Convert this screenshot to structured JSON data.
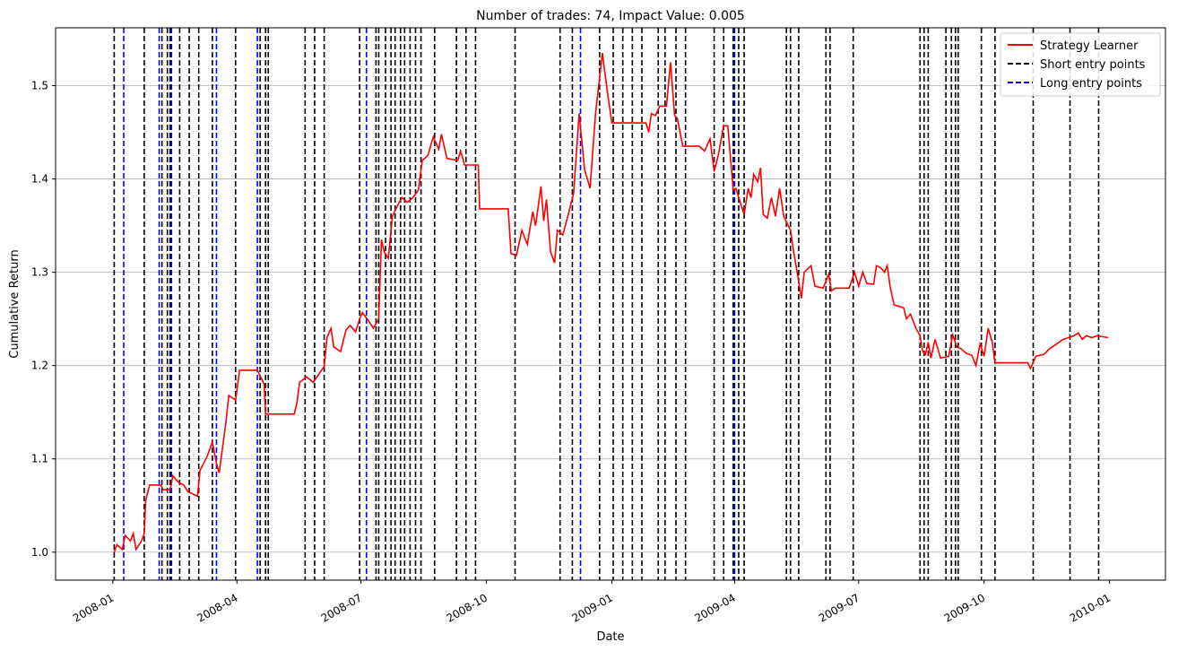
{
  "chart_data": {
    "type": "line",
    "title": "Number of trades: 74, Impact Value: 0.005",
    "xlabel": "Date",
    "ylabel": "Cumulative Return",
    "xlim": [
      "2007-11-20",
      "2010-02-11"
    ],
    "ylim": [
      0.97,
      1.562
    ],
    "x_ticks": [
      "2008-01",
      "2008-04",
      "2008-07",
      "2008-10",
      "2009-01",
      "2009-04",
      "2009-07",
      "2009-10",
      "2010-01"
    ],
    "x_tick_dates": [
      "2008-01-01",
      "2008-04-01",
      "2008-07-01",
      "2008-10-01",
      "2009-01-01",
      "2009-04-01",
      "2009-07-01",
      "2009-10-01",
      "2010-01-01"
    ],
    "y_ticks": [
      1.0,
      1.1,
      1.2,
      1.3,
      1.4,
      1.5
    ],
    "y_tick_labels": [
      "1.0",
      "1.1",
      "1.2",
      "1.3",
      "1.4",
      "1.5"
    ],
    "grid": "y-major",
    "legend_position": "top-right",
    "legend": [
      "Strategy Learner",
      "Short entry points",
      "Long entry points"
    ],
    "colors": {
      "strategy": "#ff0000",
      "short": "#000000",
      "long": "#0000ff",
      "grid": "#b0b0b0"
    },
    "series": [
      {
        "name": "Strategy Learner",
        "points": [
          [
            "2008-01-02",
            1.0
          ],
          [
            "2008-01-04",
            1.008
          ],
          [
            "2008-01-08",
            1.003
          ],
          [
            "2008-01-10",
            1.018
          ],
          [
            "2008-01-14",
            1.012
          ],
          [
            "2008-01-16",
            1.02
          ],
          [
            "2008-01-18",
            1.003
          ],
          [
            "2008-01-22",
            1.012
          ],
          [
            "2008-01-24",
            1.02
          ],
          [
            "2008-01-25",
            1.055
          ],
          [
            "2008-01-28",
            1.072
          ],
          [
            "2008-02-05",
            1.072
          ],
          [
            "2008-02-07",
            1.067
          ],
          [
            "2008-02-12",
            1.067
          ],
          [
            "2008-02-14",
            1.082
          ],
          [
            "2008-02-18",
            1.075
          ],
          [
            "2008-02-22",
            1.072
          ],
          [
            "2008-02-25",
            1.065
          ],
          [
            "2008-03-03",
            1.06
          ],
          [
            "2008-03-05",
            1.088
          ],
          [
            "2008-03-10",
            1.102
          ],
          [
            "2008-03-14",
            1.118
          ],
          [
            "2008-03-17",
            1.095
          ],
          [
            "2008-03-19",
            1.085
          ],
          [
            "2008-03-24",
            1.14
          ],
          [
            "2008-03-26",
            1.168
          ],
          [
            "2008-03-31",
            1.163
          ],
          [
            "2008-04-03",
            1.195
          ],
          [
            "2008-04-16",
            1.195
          ],
          [
            "2008-04-21",
            1.18
          ],
          [
            "2008-04-22",
            1.148
          ],
          [
            "2008-05-13",
            1.148
          ],
          [
            "2008-05-15",
            1.16
          ],
          [
            "2008-05-17",
            1.182
          ],
          [
            "2008-05-22",
            1.188
          ],
          [
            "2008-05-27",
            1.182
          ],
          [
            "2008-06-02",
            1.195
          ],
          [
            "2008-06-04",
            1.199
          ],
          [
            "2008-06-06",
            1.23
          ],
          [
            "2008-06-09",
            1.24
          ],
          [
            "2008-06-11",
            1.22
          ],
          [
            "2008-06-16",
            1.215
          ],
          [
            "2008-06-20",
            1.238
          ],
          [
            "2008-06-23",
            1.243
          ],
          [
            "2008-06-27",
            1.236
          ],
          [
            "2008-06-30",
            1.25
          ],
          [
            "2008-07-02",
            1.257
          ],
          [
            "2008-07-07",
            1.247
          ],
          [
            "2008-07-10",
            1.24
          ],
          [
            "2008-07-14",
            1.25
          ],
          [
            "2008-07-16",
            1.335
          ],
          [
            "2008-07-18",
            1.322
          ],
          [
            "2008-07-21",
            1.315
          ],
          [
            "2008-07-24",
            1.36
          ],
          [
            "2008-07-28",
            1.372
          ],
          [
            "2008-07-31",
            1.38
          ],
          [
            "2008-08-04",
            1.375
          ],
          [
            "2008-08-08",
            1.38
          ],
          [
            "2008-08-12",
            1.388
          ],
          [
            "2008-08-15",
            1.42
          ],
          [
            "2008-08-19",
            1.425
          ],
          [
            "2008-08-23",
            1.445
          ],
          [
            "2008-08-27",
            1.432
          ],
          [
            "2008-08-29",
            1.448
          ],
          [
            "2008-09-02",
            1.422
          ],
          [
            "2008-09-10",
            1.42
          ],
          [
            "2008-09-12",
            1.43
          ],
          [
            "2008-09-15",
            1.415
          ],
          [
            "2008-09-25",
            1.415
          ],
          [
            "2008-09-26",
            1.368
          ],
          [
            "2008-10-17",
            1.368
          ],
          [
            "2008-10-19",
            1.32
          ],
          [
            "2008-10-23",
            1.318
          ],
          [
            "2008-10-27",
            1.345
          ],
          [
            "2008-10-31",
            1.33
          ],
          [
            "2008-11-04",
            1.365
          ],
          [
            "2008-11-06",
            1.35
          ],
          [
            "2008-11-10",
            1.392
          ],
          [
            "2008-11-12",
            1.355
          ],
          [
            "2008-11-14",
            1.378
          ],
          [
            "2008-11-17",
            1.322
          ],
          [
            "2008-11-20",
            1.31
          ],
          [
            "2008-11-22",
            1.345
          ],
          [
            "2008-11-26",
            1.34
          ],
          [
            "2008-11-30",
            1.362
          ],
          [
            "2008-12-04",
            1.385
          ],
          [
            "2008-12-08",
            1.47
          ],
          [
            "2008-12-12",
            1.41
          ],
          [
            "2008-12-16",
            1.39
          ],
          [
            "2008-12-20",
            1.47
          ],
          [
            "2008-12-25",
            1.535
          ],
          [
            "2008-12-29",
            1.49
          ],
          [
            "2009-01-01",
            1.46
          ],
          [
            "2009-01-26",
            1.46
          ],
          [
            "2009-01-28",
            1.45
          ],
          [
            "2009-01-30",
            1.47
          ],
          [
            "2009-02-02",
            1.468
          ],
          [
            "2009-02-05",
            1.478
          ],
          [
            "2009-02-10",
            1.478
          ],
          [
            "2009-02-13",
            1.525
          ],
          [
            "2009-02-16",
            1.468
          ],
          [
            "2009-02-18",
            1.465
          ],
          [
            "2009-02-22",
            1.435
          ],
          [
            "2009-03-06",
            1.435
          ],
          [
            "2009-03-10",
            1.43
          ],
          [
            "2009-03-14",
            1.443
          ],
          [
            "2009-03-17",
            1.408
          ],
          [
            "2009-03-20",
            1.425
          ],
          [
            "2009-03-24",
            1.457
          ],
          [
            "2009-03-27",
            1.457
          ],
          [
            "2009-03-31",
            1.388
          ],
          [
            "2009-04-02",
            1.39
          ],
          [
            "2009-04-04",
            1.38
          ],
          [
            "2009-04-08",
            1.362
          ],
          [
            "2009-04-11",
            1.39
          ],
          [
            "2009-04-13",
            1.38
          ],
          [
            "2009-04-15",
            1.405
          ],
          [
            "2009-04-18",
            1.397
          ],
          [
            "2009-04-20",
            1.412
          ],
          [
            "2009-04-22",
            1.362
          ],
          [
            "2009-04-25",
            1.358
          ],
          [
            "2009-04-28",
            1.38
          ],
          [
            "2009-05-01",
            1.36
          ],
          [
            "2009-05-04",
            1.39
          ],
          [
            "2009-05-07",
            1.36
          ],
          [
            "2009-05-12",
            1.345
          ],
          [
            "2009-05-14",
            1.325
          ],
          [
            "2009-05-18",
            1.29
          ],
          [
            "2009-05-20",
            1.272
          ],
          [
            "2009-05-22",
            1.3
          ],
          [
            "2009-05-27",
            1.307
          ],
          [
            "2009-05-30",
            1.285
          ],
          [
            "2009-06-05",
            1.283
          ],
          [
            "2009-06-09",
            1.298
          ],
          [
            "2009-06-11",
            1.28
          ],
          [
            "2009-06-14",
            1.283
          ],
          [
            "2009-06-24",
            1.283
          ],
          [
            "2009-06-28",
            1.3
          ],
          [
            "2009-07-01",
            1.285
          ],
          [
            "2009-07-04",
            1.3
          ],
          [
            "2009-07-07",
            1.288
          ],
          [
            "2009-07-12",
            1.287
          ],
          [
            "2009-07-14",
            1.307
          ],
          [
            "2009-07-17",
            1.305
          ],
          [
            "2009-07-20",
            1.3
          ],
          [
            "2009-07-22",
            1.307
          ],
          [
            "2009-07-24",
            1.285
          ],
          [
            "2009-07-27",
            1.265
          ],
          [
            "2009-08-03",
            1.262
          ],
          [
            "2009-08-05",
            1.25
          ],
          [
            "2009-08-08",
            1.255
          ],
          [
            "2009-08-12",
            1.24
          ],
          [
            "2009-08-15",
            1.232
          ],
          [
            "2009-08-17",
            1.215
          ],
          [
            "2009-08-19",
            1.212
          ],
          [
            "2009-08-21",
            1.225
          ],
          [
            "2009-08-23",
            1.208
          ],
          [
            "2009-08-26",
            1.228
          ],
          [
            "2009-08-30",
            1.208
          ],
          [
            "2009-09-05",
            1.21
          ],
          [
            "2009-09-08",
            1.233
          ],
          [
            "2009-09-11",
            1.22
          ],
          [
            "2009-09-14",
            1.218
          ],
          [
            "2009-09-18",
            1.213
          ],
          [
            "2009-09-22",
            1.211
          ],
          [
            "2009-09-25",
            1.2
          ],
          [
            "2009-09-28",
            1.223
          ],
          [
            "2009-10-01",
            1.21
          ],
          [
            "2009-10-04",
            1.24
          ],
          [
            "2009-10-07",
            1.225
          ],
          [
            "2009-10-09",
            1.203
          ],
          [
            "2009-11-02",
            1.203
          ],
          [
            "2009-11-04",
            1.197
          ],
          [
            "2009-11-08",
            1.21
          ],
          [
            "2009-11-14",
            1.212
          ],
          [
            "2009-11-18",
            1.218
          ],
          [
            "2009-11-22",
            1.222
          ],
          [
            "2009-11-25",
            1.225
          ],
          [
            "2009-11-28",
            1.228
          ],
          [
            "2009-12-02",
            1.23
          ],
          [
            "2009-12-06",
            1.232
          ],
          [
            "2009-12-09",
            1.235
          ],
          [
            "2009-12-12",
            1.228
          ],
          [
            "2009-12-15",
            1.232
          ],
          [
            "2009-12-19",
            1.23
          ],
          [
            "2009-12-23",
            1.232
          ],
          [
            "2009-12-31",
            1.23
          ]
        ]
      },
      {
        "name": "Short entry points",
        "dates": [
          "2008-01-02",
          "2008-01-24",
          "2008-02-06",
          "2008-02-10",
          "2008-02-12",
          "2008-02-19",
          "2008-02-26",
          "2008-03-04",
          "2008-03-14",
          "2008-03-31",
          "2008-04-18",
          "2008-04-22",
          "2008-04-24",
          "2008-05-21",
          "2008-05-28",
          "2008-06-04",
          "2008-06-30",
          "2008-07-12",
          "2008-07-14",
          "2008-07-19",
          "2008-07-23",
          "2008-07-26",
          "2008-07-30",
          "2008-08-02",
          "2008-08-06",
          "2008-08-10",
          "2008-08-14",
          "2008-08-24",
          "2008-09-09",
          "2008-09-16",
          "2008-09-23",
          "2008-10-22",
          "2008-11-24",
          "2008-12-03",
          "2008-12-23",
          "2009-01-02",
          "2009-01-09",
          "2009-01-16",
          "2009-01-23",
          "2009-02-04",
          "2009-02-09",
          "2009-02-17",
          "2009-02-24",
          "2009-03-17",
          "2009-03-24",
          "2009-03-31",
          "2009-04-04",
          "2009-04-08",
          "2009-05-09",
          "2009-05-12",
          "2009-05-18",
          "2009-06-07",
          "2009-06-10",
          "2009-06-27",
          "2009-08-15",
          "2009-08-18",
          "2009-08-21",
          "2009-09-03",
          "2009-09-07",
          "2009-09-10",
          "2009-09-12",
          "2009-09-29",
          "2009-10-09",
          "2009-11-06",
          "2009-12-03",
          "2009-12-24"
        ]
      },
      {
        "name": "Long entry points",
        "dates": [
          "2008-01-09",
          "2008-02-04",
          "2008-02-13",
          "2008-03-17",
          "2008-04-16",
          "2008-07-05",
          "2008-12-09",
          "2009-04-01"
        ]
      }
    ]
  }
}
